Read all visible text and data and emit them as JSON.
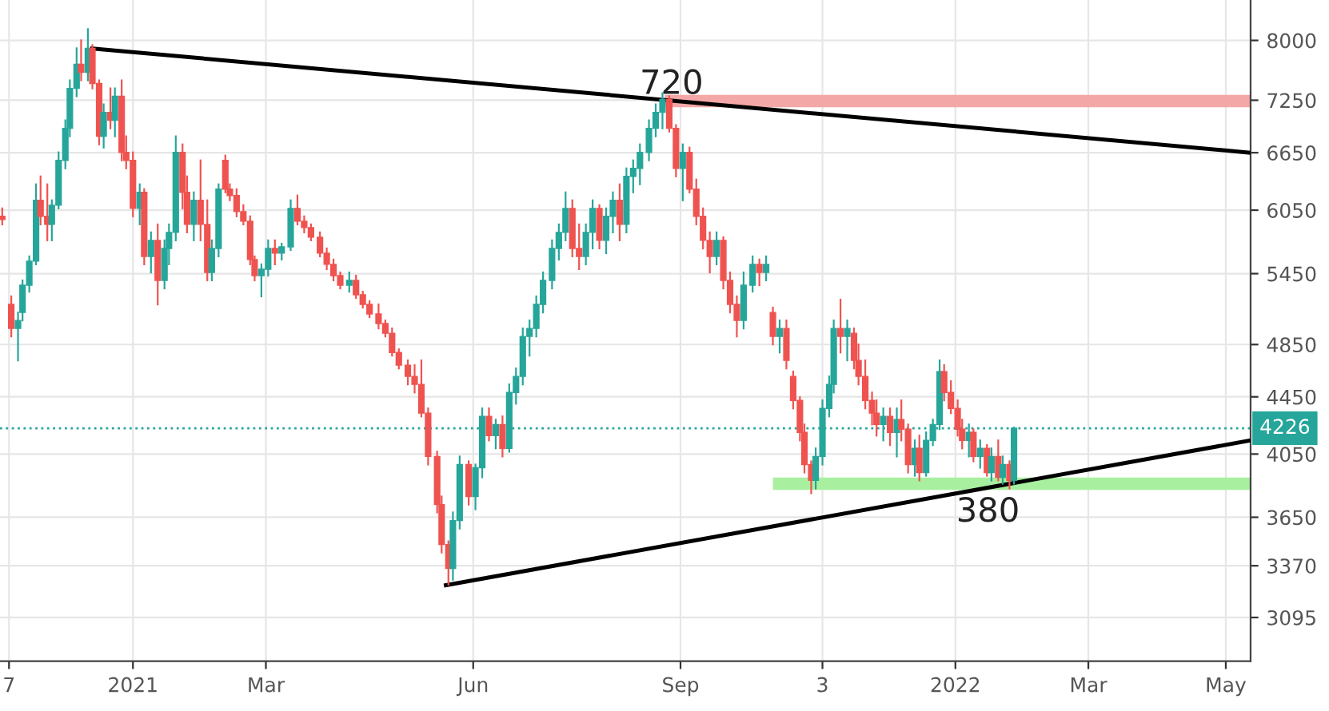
{
  "chart_data": {
    "type": "candlestick",
    "colors": [
      "#26a69a",
      "#ef5350"
    ],
    "series": [
      {
        "x": [
          "2020-11-04",
          "2020-11-08",
          "2020-11-11",
          "2020-11-13",
          "2020-11-16",
          "2020-11-19",
          "2020-11-21",
          "2020-11-24",
          "2020-11-26",
          "2020-11-29",
          "2020-12-02",
          "2020-12-04",
          "2020-12-07",
          "2020-12-09",
          "2020-12-12",
          "2020-12-14",
          "2020-12-17",
          "2020-12-19",
          "2020-12-22",
          "2020-12-24",
          "2020-12-27",
          "2020-12-29",
          "2021-01-01",
          "2021-01-04",
          "2021-01-06",
          "2021-01-09",
          "2021-01-12",
          "2021-01-15",
          "2021-01-17",
          "2021-01-20",
          "2021-01-23",
          "2021-01-25",
          "2021-01-28",
          "2021-01-31",
          "2021-02-03",
          "2021-02-05",
          "2021-02-08",
          "2021-02-11",
          "2021-02-13",
          "2021-02-16",
          "2021-02-19",
          "2021-02-22",
          "2021-02-24",
          "2021-02-27",
          "2021-03-02",
          "2021-03-05",
          "2021-03-08",
          "2021-03-12",
          "2021-03-15",
          "2021-03-18",
          "2021-03-21",
          "2021-03-25",
          "2021-03-28",
          "2021-03-31",
          "2021-04-03",
          "2021-04-07",
          "2021-04-10",
          "2021-04-13",
          "2021-04-16",
          "2021-04-20",
          "2021-04-23",
          "2021-04-26",
          "2021-04-29",
          "2021-05-03",
          "2021-05-06",
          "2021-05-09",
          "2021-05-12",
          "2021-05-16",
          "2021-05-18",
          "2021-05-21",
          "2021-05-23",
          "2021-05-26",
          "2021-05-30",
          "2021-06-02",
          "2021-06-05",
          "2021-06-08",
          "2021-06-11",
          "2021-06-14",
          "2021-06-17",
          "2021-06-20",
          "2021-06-23",
          "2021-06-26",
          "2021-06-29",
          "2021-07-02",
          "2021-07-06",
          "2021-07-09",
          "2021-07-12",
          "2021-07-15",
          "2021-07-18",
          "2021-07-21",
          "2021-07-24",
          "2021-07-27",
          "2021-07-30",
          "2021-08-02",
          "2021-08-05",
          "2021-08-08",
          "2021-08-11",
          "2021-08-14",
          "2021-08-18",
          "2021-08-21",
          "2021-08-24",
          "2021-08-27",
          "2021-08-30",
          "2021-09-02",
          "2021-09-05",
          "2021-09-08",
          "2021-09-11",
          "2021-09-14",
          "2021-09-17",
          "2021-09-20",
          "2021-09-23",
          "2021-09-26",
          "2021-09-29",
          "2021-10-03",
          "2021-10-06",
          "2021-10-09",
          "2021-10-12",
          "2021-10-15",
          "2021-10-18",
          "2021-10-21",
          "2021-10-24",
          "2021-10-26",
          "2021-10-29",
          "2021-10-31",
          "2021-11-03",
          "2021-11-06",
          "2021-11-08",
          "2021-11-11",
          "2021-11-14",
          "2021-11-17",
          "2021-11-19",
          "2021-11-22",
          "2021-11-25",
          "2021-11-27",
          "2021-11-30",
          "2021-12-03",
          "2021-12-06",
          "2021-12-08",
          "2021-12-11",
          "2021-12-14",
          "2021-12-16",
          "2021-12-19",
          "2021-12-22",
          "2021-12-25",
          "2021-12-27",
          "2021-12-30",
          "2022-01-02",
          "2022-01-04",
          "2022-01-07",
          "2022-01-09",
          "2022-01-12",
          "2022-01-15",
          "2022-01-17",
          "2022-01-20",
          "2022-01-22",
          "2022-01-25",
          "2022-01-27"
        ],
        "ohlc": [
          [
            5989,
            6068,
            5910,
            5957
          ],
          [
            5181,
            5250,
            4915,
            4980
          ],
          [
            4980,
            5113,
            4725,
            5046
          ],
          [
            5113,
            5390,
            5046,
            5347
          ],
          [
            5347,
            5607,
            5291,
            5563
          ],
          [
            5563,
            6313,
            5534,
            6149
          ],
          [
            6149,
            6396,
            5910,
            5989
          ],
          [
            5989,
            6313,
            5757,
            5910
          ],
          [
            5910,
            6149,
            5757,
            6100
          ],
          [
            6100,
            6654,
            6068,
            6567
          ],
          [
            6567,
            7014,
            6481,
            6922
          ],
          [
            6922,
            7491,
            6832,
            7393
          ],
          [
            7393,
            7897,
            7297,
            7691
          ],
          [
            7691,
            8001,
            7491,
            7591
          ],
          [
            7591,
            8150,
            7491,
            7897
          ],
          [
            7897,
            7938,
            7393,
            7452
          ],
          [
            7452,
            7491,
            6742,
            6832
          ],
          [
            6832,
            7201,
            6706,
            7107
          ],
          [
            7107,
            7393,
            6922,
            7014
          ],
          [
            7014,
            7393,
            6832,
            7297
          ],
          [
            7297,
            7491,
            6567,
            6654
          ],
          [
            6654,
            6832,
            6481,
            6567
          ],
          [
            6567,
            6654,
            5989,
            6068
          ],
          [
            6068,
            6313,
            5910,
            6230
          ],
          [
            6230,
            6263,
            5534,
            5607
          ],
          [
            5607,
            5833,
            5461,
            5757
          ],
          [
            5757,
            5910,
            5181,
            5390
          ],
          [
            5390,
            5757,
            5319,
            5681
          ],
          [
            5681,
            5910,
            5534,
            5833
          ],
          [
            5833,
            6832,
            5757,
            6654
          ],
          [
            6654,
            6742,
            6068,
            6230
          ],
          [
            6230,
            6396,
            5833,
            5910
          ],
          [
            5910,
            6230,
            5757,
            6149
          ],
          [
            6149,
            6567,
            5757,
            5910
          ],
          [
            5910,
            6149,
            5390,
            5461
          ],
          [
            5461,
            5757,
            5390,
            5681
          ],
          [
            5681,
            6313,
            5607,
            6263
          ],
          [
            6567,
            6619,
            6230,
            6263
          ],
          [
            6263,
            6313,
            6149,
            6198
          ],
          [
            6198,
            6263,
            5989,
            6036
          ],
          [
            6036,
            6100,
            5910,
            5941
          ],
          [
            5941,
            5989,
            5534,
            5578
          ],
          [
            5578,
            5607,
            5390,
            5432
          ],
          [
            5432,
            5534,
            5250,
            5490
          ],
          [
            5490,
            5757,
            5432,
            5681
          ],
          [
            5681,
            5757,
            5534,
            5637
          ],
          [
            5637,
            5726,
            5578,
            5696
          ],
          [
            5696,
            6149,
            5666,
            6068
          ],
          [
            6068,
            6198,
            5910,
            5941
          ],
          [
            5941,
            5989,
            5833,
            5879
          ],
          [
            5879,
            5910,
            5757,
            5787
          ],
          [
            5787,
            5833,
            5607,
            5637
          ],
          [
            5637,
            5681,
            5490,
            5534
          ],
          [
            5534,
            5578,
            5390,
            5432
          ],
          [
            5432,
            5461,
            5319,
            5347
          ],
          [
            5347,
            5461,
            5291,
            5390
          ],
          [
            5390,
            5432,
            5236,
            5264
          ],
          [
            5264,
            5291,
            5154,
            5181
          ],
          [
            5181,
            5208,
            5073,
            5100
          ],
          [
            5100,
            5181,
            4980,
            5020
          ],
          [
            5020,
            5046,
            4915,
            4941
          ],
          [
            4941,
            4980,
            4762,
            4787
          ],
          [
            4787,
            4812,
            4663,
            4688
          ],
          [
            4688,
            4725,
            4542,
            4602
          ],
          [
            4602,
            4688,
            4482,
            4542
          ],
          [
            4542,
            4725,
            4309,
            4332
          ],
          [
            4332,
            4366,
            3981,
            4034
          ],
          [
            4034,
            4066,
            3679,
            3727
          ],
          [
            3727,
            3777,
            3444,
            3490
          ],
          [
            3490,
            3508,
            3267,
            3355
          ],
          [
            3355,
            3679,
            3293,
            3630
          ],
          [
            3630,
            4034,
            3583,
            3981
          ],
          [
            3981,
            4002,
            3727,
            3777
          ],
          [
            3777,
            3981,
            3698,
            3960
          ],
          [
            3960,
            4366,
            3898,
            4309
          ],
          [
            4309,
            4366,
            4142,
            4175
          ],
          [
            4175,
            4286,
            4088,
            4252
          ],
          [
            4252,
            4309,
            4034,
            4088
          ],
          [
            4088,
            4542,
            4066,
            4482
          ],
          [
            4482,
            4663,
            4400,
            4602
          ],
          [
            4602,
            4980,
            4542,
            4915
          ],
          [
            4915,
            5046,
            4762,
            4980
          ],
          [
            4980,
            5250,
            4915,
            5181
          ],
          [
            5181,
            5461,
            5113,
            5390
          ],
          [
            5390,
            5757,
            5319,
            5681
          ],
          [
            5681,
            5910,
            5578,
            5833
          ],
          [
            5833,
            6230,
            5757,
            6068
          ],
          [
            6068,
            6149,
            5607,
            5681
          ],
          [
            5681,
            5910,
            5490,
            5607
          ],
          [
            5607,
            5910,
            5534,
            5833
          ],
          [
            5833,
            6149,
            5681,
            6068
          ],
          [
            6068,
            6100,
            5681,
            5757
          ],
          [
            5757,
            6068,
            5637,
            5989
          ],
          [
            5989,
            6230,
            5833,
            6149
          ],
          [
            6149,
            6313,
            5757,
            5910
          ],
          [
            5910,
            6481,
            5833,
            6396
          ],
          [
            6396,
            6567,
            6230,
            6481
          ],
          [
            6481,
            6742,
            6313,
            6654
          ],
          [
            6654,
            7014,
            6567,
            6922
          ],
          [
            6922,
            7201,
            6832,
            7107
          ],
          [
            7107,
            7335,
            6922,
            7259
          ],
          [
            7259,
            7297,
            6886,
            6922
          ],
          [
            6922,
            6959,
            6396,
            6481
          ],
          [
            6481,
            6742,
            6149,
            6654
          ],
          [
            6654,
            6706,
            6230,
            6263
          ],
          [
            6263,
            6363,
            5910,
            5989
          ],
          [
            5989,
            6068,
            5681,
            5757
          ],
          [
            5757,
            5833,
            5461,
            5607
          ],
          [
            5607,
            5833,
            5534,
            5757
          ],
          [
            5757,
            5787,
            5319,
            5390
          ],
          [
            5390,
            5461,
            5113,
            5181
          ],
          [
            5181,
            5250,
            4915,
            5046
          ],
          [
            5046,
            5461,
            4980,
            5347
          ],
          [
            5347,
            5607,
            5291,
            5534
          ],
          [
            5534,
            5578,
            5347,
            5461
          ],
          [
            5461,
            5607,
            5390,
            5534
          ],
          [
            5113,
            5154,
            4851,
            4915
          ],
          [
            4915,
            5046,
            4787,
            4980
          ],
          [
            4980,
            5046,
            4663,
            4725
          ],
          [
            4602,
            4639,
            4366,
            4424
          ],
          [
            4424,
            4447,
            4142,
            4197
          ],
          [
            4197,
            4252,
            3929,
            3981
          ],
          [
            3981,
            4002,
            3797,
            3878
          ],
          [
            3878,
            4088,
            3827,
            4034
          ],
          [
            4034,
            4424,
            3981,
            4366
          ],
          [
            4366,
            4602,
            4309,
            4542
          ],
          [
            4542,
            5046,
            4482,
            4980
          ],
          [
            4980,
            5222,
            4787,
            4915
          ],
          [
            4915,
            5046,
            4725,
            4980
          ],
          [
            4941,
            4980,
            4663,
            4725
          ],
          [
            4725,
            4851,
            4542,
            4602
          ],
          [
            4602,
            4725,
            4366,
            4424
          ],
          [
            4424,
            4482,
            4252,
            4332
          ],
          [
            4332,
            4424,
            4175,
            4252
          ],
          [
            4252,
            4366,
            4142,
            4309
          ],
          [
            4309,
            4366,
            4110,
            4197
          ],
          [
            4197,
            4366,
            4034,
            4286
          ],
          [
            4286,
            4424,
            4142,
            4219
          ],
          [
            4219,
            4252,
            3929,
            3981
          ],
          [
            3981,
            4142,
            3908,
            4088
          ],
          [
            4088,
            4175,
            3878,
            3929
          ],
          [
            3929,
            4197,
            3908,
            4142
          ],
          [
            4142,
            4286,
            4110,
            4252
          ],
          [
            4252,
            4725,
            4219,
            4639
          ],
          [
            4639,
            4688,
            4424,
            4482
          ],
          [
            4482,
            4566,
            4332,
            4366
          ],
          [
            4366,
            4424,
            4175,
            4219
          ],
          [
            4219,
            4286,
            4088,
            4142
          ],
          [
            4142,
            4252,
            4034,
            4197
          ],
          [
            4197,
            4219,
            4002,
            4034
          ],
          [
            4034,
            4142,
            3960,
            4088
          ],
          [
            4088,
            4110,
            3908,
            3929
          ],
          [
            3929,
            4088,
            3878,
            4034
          ],
          [
            4034,
            4142,
            3878,
            3898
          ],
          [
            3898,
            4034,
            3857,
            3981
          ],
          [
            3981,
            4002,
            3827,
            3878
          ],
          [
            3878,
            4230,
            3857,
            4226
          ]
        ]
      },
      {
        "type": "line",
        "color": "#000000",
        "x": [
          "2020-12-13",
          "2022-05-12"
        ],
        "values": [
          7897,
          6650
        ]
      },
      {
        "type": "line",
        "color": "#000000",
        "x": [
          "2021-05-19",
          "2022-05-12"
        ],
        "values": [
          3262,
          4142
        ]
      },
      {
        "type": "line",
        "color": "#f4a7a7",
        "x": [
          "2021-08-25",
          "2022-05-12"
        ],
        "values": [
          7240,
          7240
        ]
      },
      {
        "type": "line",
        "color": "#a8f0a0",
        "x": [
          "2021-10-12",
          "2022-05-12"
        ],
        "values": [
          3857,
          3857
        ]
      }
    ],
    "ref_lines": [
      {
        "axis": "y",
        "value": 4226,
        "label": "4226",
        "color": "#26a69a",
        "line_style": "dotted"
      }
    ],
    "annotations": [
      "720",
      "380"
    ],
    "xlim": [
      "2020-11-03",
      "2022-05-12"
    ],
    "ylim": [
      2880,
      8550
    ],
    "log": true,
    "xticks": [
      {
        "value": "2020-11-07",
        "label": "7"
      },
      "2021",
      {
        "value": "2021-03-01",
        "label": "Mar"
      },
      {
        "value": "2021-06-01",
        "label": "Jun"
      },
      {
        "value": "2021-09-01",
        "label": "Sep"
      },
      {
        "value": "2021-11-03",
        "label": "3"
      },
      "2022",
      {
        "value": "2022-03-01",
        "label": "Mar"
      },
      {
        "value": "2022-05-01",
        "label": "May"
      }
    ],
    "yticks": [
      3095,
      3370,
      3650,
      4050,
      4450,
      4850,
      5450,
      6050,
      6650,
      7250,
      8000
    ],
    "grid": true,
    "legend": false
  }
}
